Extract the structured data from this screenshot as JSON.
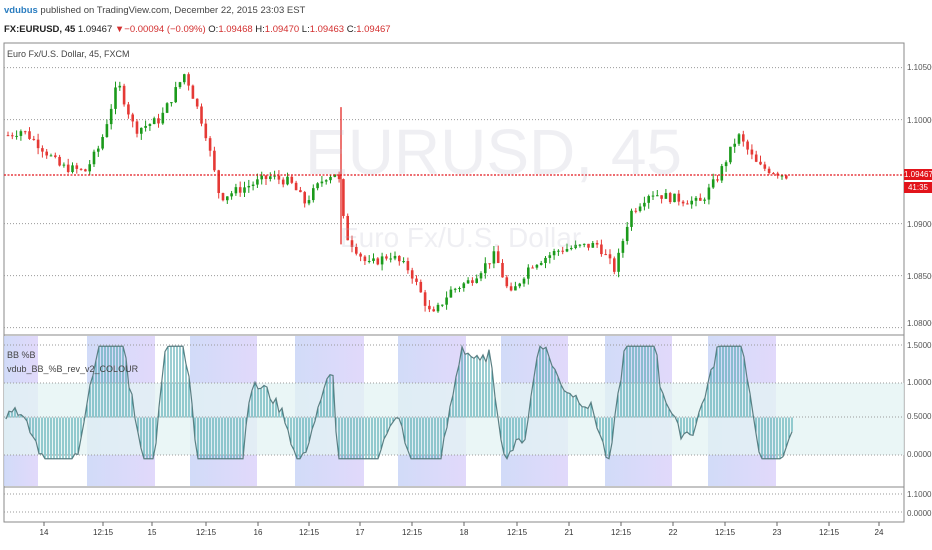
{
  "header": {
    "user": "vdubus",
    "published": " published on TradingView.com, December 22, 2015 23:03 EST",
    "symbol": "FX:EURUSD, 45",
    "last": "1.09467",
    "change": "−0.00094 (−0.09%)",
    "o_label": "O:",
    "o_value": "1.09468",
    "h_label": "H:",
    "h_value": "1.09470",
    "l_label": "L:",
    "l_value": "1.09463",
    "c_label": "C:",
    "c_value": "1.09467"
  },
  "main_pane": {
    "label": "Euro Fx/U.S. Dollar, 45, FXCM",
    "watermark_symbol": "EURUSD, 45",
    "watermark_name": "Euro Fx/U.S. Dollar",
    "price_labels": [
      "1.10500",
      "1.10000",
      "1.09000",
      "1.08500",
      "1.08000"
    ],
    "current_price": "1.09467",
    "countdown": "41:35"
  },
  "indicator_pane": {
    "label1": "BB %B",
    "label2": "vdub_BB_%B_rev_v2_COLOUR",
    "levels": [
      "1.5000",
      "1.0000",
      "0.5000",
      "0.0000"
    ]
  },
  "lower_pane": {
    "levels": [
      "1.1000",
      "0.0000"
    ]
  },
  "time_axis": {
    "labels": [
      "14",
      "12:15",
      "15",
      "12:15",
      "16",
      "12:15",
      "17",
      "12:15",
      "18",
      "12:15",
      "21",
      "12:15",
      "22",
      "12:15",
      "23",
      "12:15",
      "24"
    ]
  },
  "chart_data": {
    "type": "candlestick",
    "symbol": "FX:EURUSD",
    "interval": "45",
    "y_ticks": [
      1.105,
      1.1,
      1.09,
      1.085,
      1.08
    ],
    "current_price": 1.09467,
    "x_ticks": [
      "14",
      "12:15",
      "15",
      "12:15",
      "16",
      "12:15",
      "17",
      "12:15",
      "18",
      "12:15",
      "21",
      "12:15",
      "22",
      "12:15",
      "23",
      "12:15",
      "24"
    ],
    "indicator": {
      "name": "BB %B",
      "script": "vdub_BB_%B_rev_v2_COLOUR",
      "levels": [
        1.5,
        1.0,
        0.5,
        0.0
      ]
    },
    "colors": {
      "up": "#1b9a1b",
      "down": "#e53935",
      "price_line": "#e2141b",
      "indicator": "#3a9ea5",
      "band": "#e3f3f3",
      "session_a": "#c9d5f7",
      "session_b": "#dcd2fa"
    }
  }
}
